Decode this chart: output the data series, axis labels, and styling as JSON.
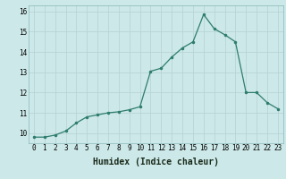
{
  "xlabel": "Humidex (Indice chaleur)",
  "x_values": [
    0,
    1,
    2,
    3,
    4,
    5,
    6,
    7,
    8,
    9,
    10,
    11,
    12,
    13,
    14,
    15,
    16,
    17,
    18,
    19,
    20,
    21,
    22,
    23
  ],
  "y_values": [
    9.8,
    9.8,
    9.9,
    10.1,
    10.5,
    10.8,
    10.9,
    11.0,
    11.05,
    11.15,
    11.3,
    13.05,
    13.2,
    13.75,
    14.2,
    14.5,
    15.85,
    15.15,
    14.85,
    14.5,
    12.0,
    12.0,
    11.5,
    11.2
  ],
  "ylim": [
    9.5,
    16.3
  ],
  "xlim": [
    -0.5,
    23.5
  ],
  "yticks": [
    10,
    11,
    12,
    13,
    14,
    15,
    16
  ],
  "xticks": [
    0,
    1,
    2,
    3,
    4,
    5,
    6,
    7,
    8,
    9,
    10,
    11,
    12,
    13,
    14,
    15,
    16,
    17,
    18,
    19,
    20,
    21,
    22,
    23
  ],
  "line_color": "#2e7d6e",
  "marker_color": "#2e7d6e",
  "bg_color": "#cce8e8",
  "grid_color": "#b8d4d4",
  "tick_fontsize": 5.5,
  "label_fontsize": 7
}
